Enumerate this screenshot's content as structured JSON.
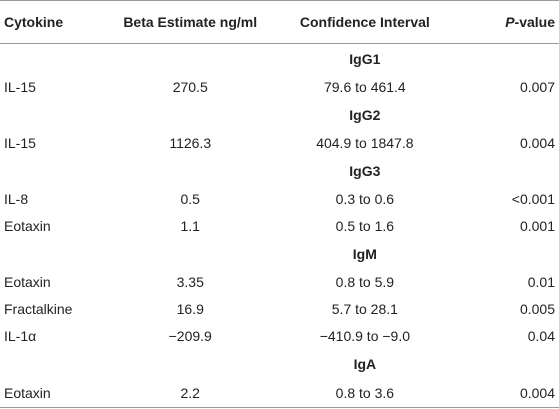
{
  "table": {
    "headers": {
      "cytokine": "Cytokine",
      "beta": "Beta Estimate ng/ml",
      "ci": "Confidence Interval",
      "p_prefix": "P",
      "p_suffix": "-value"
    },
    "groups": [
      {
        "label": "IgG1",
        "rows": [
          {
            "cytokine": "IL-15",
            "beta": "270.5",
            "ci": "79.6 to 461.4",
            "p": "0.007"
          }
        ]
      },
      {
        "label": "IgG2",
        "rows": [
          {
            "cytokine": "IL-15",
            "beta": "1126.3",
            "ci": "404.9 to 1847.8",
            "p": "0.004"
          }
        ]
      },
      {
        "label": "IgG3",
        "rows": [
          {
            "cytokine": "IL-8",
            "beta": "0.5",
            "ci": "0.3 to 0.6",
            "p": "<0.001"
          },
          {
            "cytokine": "Eotaxin",
            "beta": "1.1",
            "ci": "0.5 to 1.6",
            "p": "0.001"
          }
        ]
      },
      {
        "label": "IgM",
        "rows": [
          {
            "cytokine": "Eotaxin",
            "beta": "3.35",
            "ci": "0.8 to 5.9",
            "p": "0.01"
          },
          {
            "cytokine": "Fractalkine",
            "beta": "16.9",
            "ci": "5.7 to 28.1",
            "p": "0.005"
          },
          {
            "cytokine": "IL-1α",
            "beta": "−209.9",
            "ci": "−410.9 to −9.0",
            "p": "0.04"
          }
        ]
      },
      {
        "label": "IgA",
        "rows": [
          {
            "cytokine": "Eotaxin",
            "beta": "2.2",
            "ci": "0.8 to 3.6",
            "p": "0.004"
          }
        ]
      }
    ]
  }
}
